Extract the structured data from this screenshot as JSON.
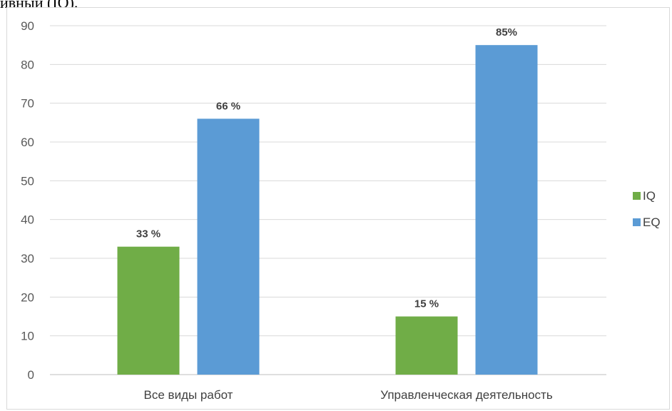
{
  "header_text": "ивный (IQ).",
  "chart_data": {
    "type": "bar",
    "categories": [
      "Все виды работ",
      "Управленческая деятельность"
    ],
    "series": [
      {
        "name": "IQ",
        "values": [
          33,
          15
        ],
        "color": "#70ad47",
        "labels": [
          "33 %",
          "15 %"
        ]
      },
      {
        "name": "EQ",
        "values": [
          66,
          85
        ],
        "color": "#5b9bd5",
        "labels": [
          "66 %",
          "85%"
        ]
      }
    ],
    "ylim": [
      0,
      90
    ],
    "yticks": [
      "0",
      "10",
      "20",
      "30",
      "40",
      "50",
      "60",
      "70",
      "80",
      "90"
    ],
    "grid": true,
    "legend": "right",
    "title": "",
    "xlabel": "",
    "ylabel": ""
  }
}
